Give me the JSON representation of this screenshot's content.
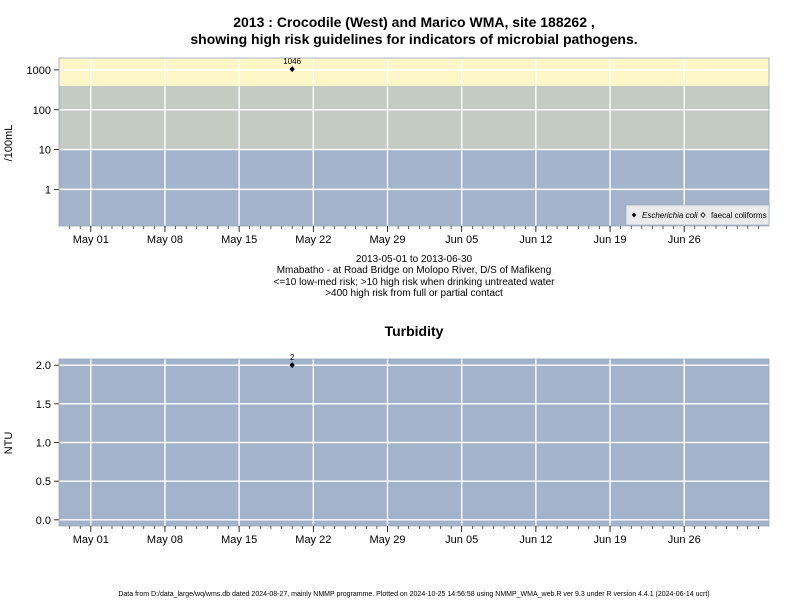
{
  "top": {
    "title_line1": "2013 : Crocodile (West) and Marico WMA, site 188262 ,",
    "title_line2": "showing high risk guidelines for indicators of microbial pathogens.",
    "ylabel": "/100mL",
    "y_ticks": [
      "1",
      "10",
      "100",
      "1000"
    ],
    "legend": {
      "ecoli": "Escherichia coli",
      "faecal": "faecal coliforms"
    },
    "caption": [
      "2013-05-01 to 2013-06-30",
      "Mmabatho - at Road Bridge on Molopo River, D/S of Mafikeng",
      "<=10 low-med risk; >10 high risk when drinking untreated water",
      ">400 high risk from full or partial contact"
    ],
    "band_colors": {
      "low": "#a3b3cb",
      "high": "#c3cbc3",
      "contact": "#fdf7c8"
    }
  },
  "bottom": {
    "title": "Turbidity",
    "ylabel": "NTU",
    "y_ticks": [
      "0.0",
      "0.5",
      "1.0",
      "1.5",
      "2.0"
    ]
  },
  "x_ticks": [
    "May 01",
    "May 08",
    "May 15",
    "May 22",
    "May 29",
    "Jun 05",
    "Jun 12",
    "Jun 19",
    "Jun 26"
  ],
  "footer": "Data from D:/data_large/wq/wms.db dated 2024-08-27, mainly NMMP programme. Plotted on 2024-10-25 14:56:58 using NMMP_WMA_web.R ver 9.3 under R version 4.4.1 (2024-06-14 ucrt)",
  "chart_data": [
    {
      "type": "scatter",
      "title": "2013 : Crocodile (West) and Marico WMA, site 188262 , showing high risk guidelines for indicators of microbial pathogens.",
      "ylabel": "/100mL",
      "y_scale": "log",
      "x_range": [
        "2013-04-28",
        "2013-07-04"
      ],
      "guideline_bands": [
        {
          "from": 0,
          "to": 10,
          "label": "<=10 low-med risk"
        },
        {
          "from": 10,
          "to": 400,
          "label": ">10 high risk when drinking untreated water"
        },
        {
          "from": 400,
          "to": 2000,
          "label": ">400 high risk from full or partial contact"
        }
      ],
      "series": [
        {
          "name": "Escherichia coli",
          "points": [
            {
              "x": "2013-05-20",
              "y": 1046,
              "label": "1046"
            }
          ]
        },
        {
          "name": "faecal coliforms",
          "points": []
        }
      ],
      "legend_position": "bottom-right",
      "grid": true
    },
    {
      "type": "scatter",
      "title": "Turbidity",
      "ylabel": "NTU",
      "x_range": [
        "2013-04-28",
        "2013-07-04"
      ],
      "ylim": [
        -0.08,
        2.08
      ],
      "series": [
        {
          "points": [
            {
              "x": "2013-05-20",
              "y": 2,
              "label": "2"
            }
          ]
        }
      ],
      "grid": true
    }
  ]
}
